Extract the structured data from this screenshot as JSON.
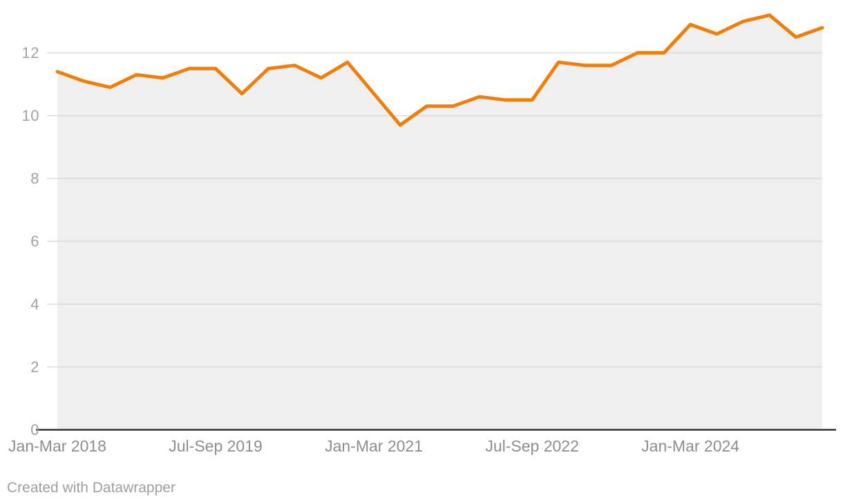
{
  "chart_data": {
    "type": "area",
    "title": "",
    "x": [
      "Jan-Mar 2018",
      "Apr-Jun 2018",
      "Jul-Sep 2018",
      "Oct-Dec 2018",
      "Jan-Mar 2019",
      "Apr-Jun 2019",
      "Jul-Sep 2019",
      "Oct-Dec 2019",
      "Jan-Mar 2020",
      "Apr-Jun 2020",
      "Jul-Sep 2020",
      "Oct-Dec 2020",
      "Jan-Mar 2021",
      "Apr-Jun 2021",
      "Jul-Sep 2021",
      "Oct-Dec 2021",
      "Jan-Mar 2022",
      "Apr-Jun 2022",
      "Jul-Sep 2022",
      "Oct-Dec 2022",
      "Jan-Mar 2023",
      "Apr-Jun 2023",
      "Jul-Sep 2023",
      "Oct-Dec 2023",
      "Jan-Mar 2024",
      "Apr-Jun 2024",
      "Jul-Sep 2024",
      "Oct-Dec 2024",
      "Jan-Mar 2025",
      "Apr-Jun 2025"
    ],
    "values": [
      11.4,
      11.1,
      10.9,
      11.3,
      11.2,
      11.5,
      11.5,
      10.7,
      11.5,
      11.6,
      11.2,
      11.7,
      10.7,
      9.7,
      10.3,
      10.3,
      10.6,
      10.5,
      10.5,
      11.7,
      11.6,
      11.6,
      12.0,
      12.0,
      12.9,
      12.6,
      13.0,
      13.2,
      12.5,
      12.8
    ],
    "xlabel": "",
    "ylabel": "",
    "y_ticks": [
      0,
      2,
      4,
      6,
      8,
      10,
      12
    ],
    "ylim": [
      0,
      13.5
    ],
    "x_tick_labels": [
      {
        "index": 0,
        "label": "Jan-Mar 2018"
      },
      {
        "index": 6,
        "label": "Jul-Sep 2019"
      },
      {
        "index": 12,
        "label": "Jan-Mar 2021"
      },
      {
        "index": 18,
        "label": "Jul-Sep 2022"
      },
      {
        "index": 24,
        "label": "Jan-Mar 2024"
      }
    ],
    "grid": true,
    "legend": "none"
  },
  "colors": {
    "line": "#ee7f0a",
    "area_fill": "#efefef",
    "gridline": "#dadada",
    "baseline": "#333333",
    "y_tick_text": "#a2a2a2",
    "x_tick_text": "#8d8d8d",
    "credit_text": "#9e9e9e",
    "background": "#ffffff"
  },
  "footer": {
    "credit": "Created with Datawrapper"
  }
}
